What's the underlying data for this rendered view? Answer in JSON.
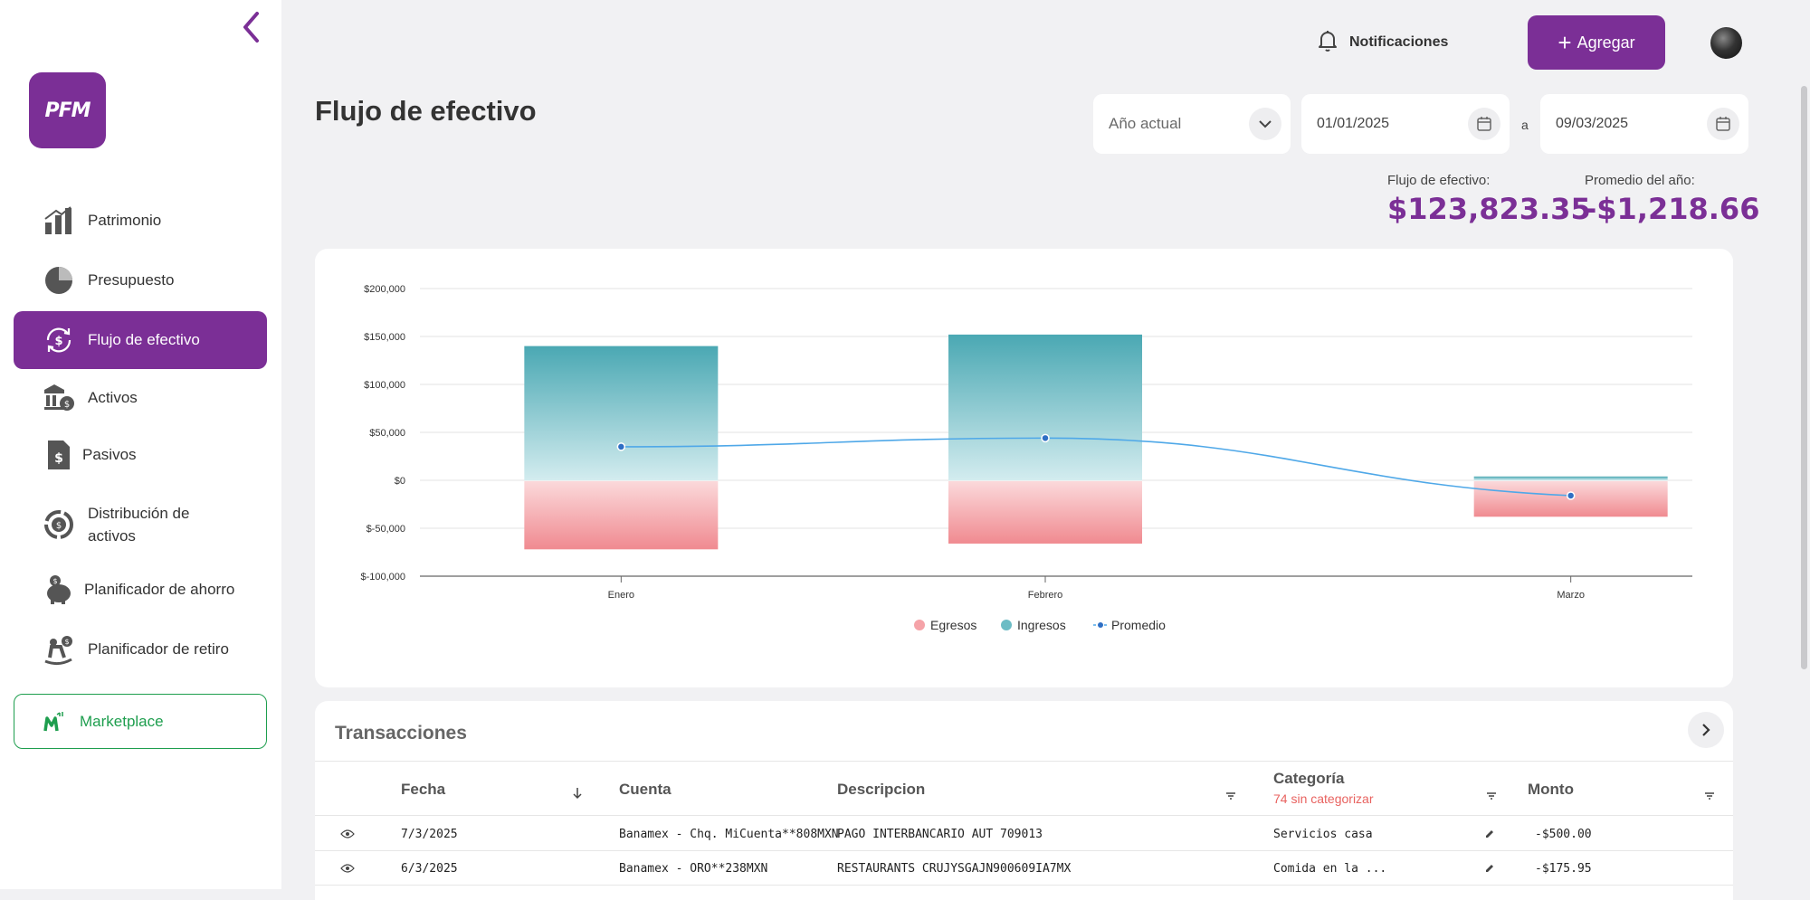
{
  "sidebar": {
    "logo_text": "PFM",
    "items": [
      {
        "label": "Patrimonio",
        "icon": "bar-chart-icon"
      },
      {
        "label": "Presupuesto",
        "icon": "pie-chart-icon"
      },
      {
        "label": "Flujo de efectivo",
        "icon": "cash-flow-icon",
        "active": true
      },
      {
        "label": "Activos",
        "icon": "assets-icon"
      },
      {
        "label": "Pasivos",
        "icon": "liabilities-icon"
      },
      {
        "label": "Distribución de activos",
        "icon": "distribution-icon"
      },
      {
        "label": "Planificador de ahorro",
        "icon": "piggy-bank-icon"
      },
      {
        "label": "Planificador de retiro",
        "icon": "retirement-icon"
      }
    ],
    "marketplace_label": "Marketplace"
  },
  "header": {
    "notifications_label": "Notificaciones",
    "add_label": "Agregar"
  },
  "page": {
    "title": "Flujo de efectivo",
    "period_select": "Año actual",
    "date_from": "01/01/2025",
    "date_separator": "a",
    "date_to": "09/03/2025",
    "cash_flow_label": "Flujo de efectivo:",
    "cash_flow_value": "$123,823.35",
    "year_avg_label": "Promedio del año:",
    "year_avg_value": "-$1,218.66"
  },
  "chart_data": {
    "type": "bar",
    "categories": [
      "Enero",
      "Febrero",
      "Marzo"
    ],
    "series": [
      {
        "name": "Ingresos",
        "values": [
          140000,
          152000,
          4000
        ]
      },
      {
        "name": "Egresos",
        "values": [
          -72000,
          -66000,
          -38000
        ]
      },
      {
        "name": "Promedio",
        "type": "line",
        "values": [
          35000,
          44000,
          -16000
        ]
      }
    ],
    "y_ticks": [
      "$200,000",
      "$150,000",
      "$100,000",
      "$50,000",
      "$0",
      "$-50,000",
      "$-100,000"
    ],
    "ylim": [
      -100000,
      200000
    ],
    "legend": [
      "Egresos",
      "Ingresos",
      "Promedio"
    ],
    "legend_position": "bottom",
    "colors": {
      "ingresos": "#4aa8b3",
      "egresos": "#f08a90",
      "promedio": "#4fa8e8"
    }
  },
  "transactions": {
    "title": "Transacciones",
    "columns": {
      "fecha": "Fecha",
      "cuenta": "Cuenta",
      "descripcion": "Descripcion",
      "categoria": "Categoría",
      "uncategorized": "74 sin categorizar",
      "monto": "Monto"
    },
    "rows": [
      {
        "fecha": "7/3/2025",
        "cuenta": "Banamex - Chq. MiCuenta**808MXN",
        "descripcion": "PAGO INTERBANCARIO AUT 709013",
        "categoria": "Servicios casa",
        "monto": "-$500.00"
      },
      {
        "fecha": "6/3/2025",
        "cuenta": "Banamex - ORO**238MXN",
        "descripcion": "RESTAURANTS CRUJYSGAJN900609IA7MX",
        "categoria": "Comida en la ...",
        "monto": "-$175.95"
      }
    ]
  },
  "colors": {
    "brand": "#7b2f96",
    "marketplace": "#1e9e4e",
    "alert": "#e8625f"
  }
}
